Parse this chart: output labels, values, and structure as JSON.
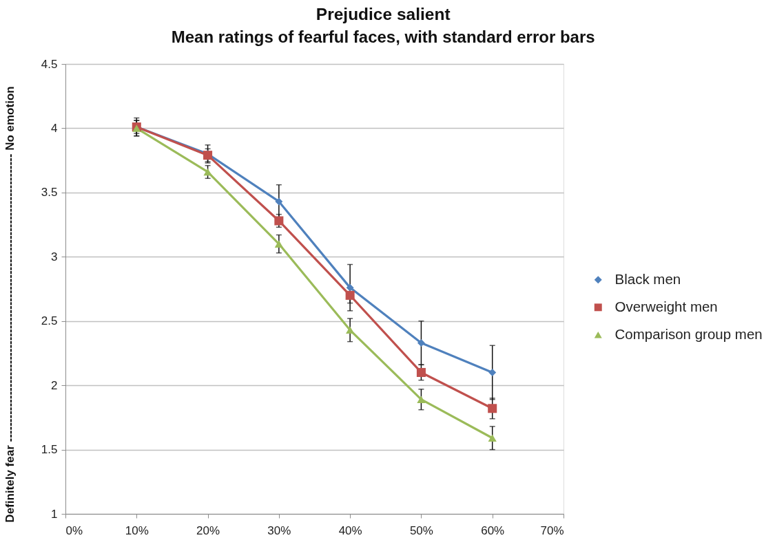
{
  "chart_data": {
    "type": "line",
    "title": "Prejudice salient",
    "subtitle": "Mean ratings of fearful faces, with standard error bars",
    "ylabel": "Definitely fear -------------------------------------------------------------------------- No emotion",
    "x": [
      10,
      20,
      30,
      40,
      50,
      60
    ],
    "series": [
      {
        "name": "Black men",
        "color": "#4f81bd",
        "marker": "diamond",
        "values": [
          4.01,
          3.8,
          3.43,
          2.76,
          2.33,
          2.1
        ],
        "errors": [
          0.07,
          0.07,
          0.13,
          0.18,
          0.17,
          0.21
        ]
      },
      {
        "name": "Overweight men",
        "color": "#c0504d",
        "marker": "square",
        "values": [
          4.01,
          3.79,
          3.28,
          2.7,
          2.1,
          1.82
        ],
        "errors": [
          0.05,
          0.05,
          0.05,
          0.06,
          0.06,
          0.08
        ]
      },
      {
        "name": "Comparison group men",
        "color": "#9bbb59",
        "marker": "triangle",
        "values": [
          4.0,
          3.66,
          3.1,
          2.43,
          1.89,
          1.59
        ],
        "errors": [
          0.06,
          0.05,
          0.07,
          0.09,
          0.08,
          0.09
        ]
      }
    ],
    "xlim": [
      0,
      70
    ],
    "xticks": [
      {
        "value": 0,
        "label": "0%"
      },
      {
        "value": 10,
        "label": "10%"
      },
      {
        "value": 20,
        "label": "20%"
      },
      {
        "value": 30,
        "label": "30%"
      },
      {
        "value": 40,
        "label": "40%"
      },
      {
        "value": 50,
        "label": "50%"
      },
      {
        "value": 60,
        "label": "60%"
      },
      {
        "value": 70,
        "label": "70%"
      }
    ],
    "ylim": [
      1,
      4.5
    ],
    "yticks": [
      1,
      1.5,
      2,
      2.5,
      3,
      3.5,
      4,
      4.5
    ],
    "grid": "y",
    "legend": "right",
    "line_style": "solid"
  }
}
